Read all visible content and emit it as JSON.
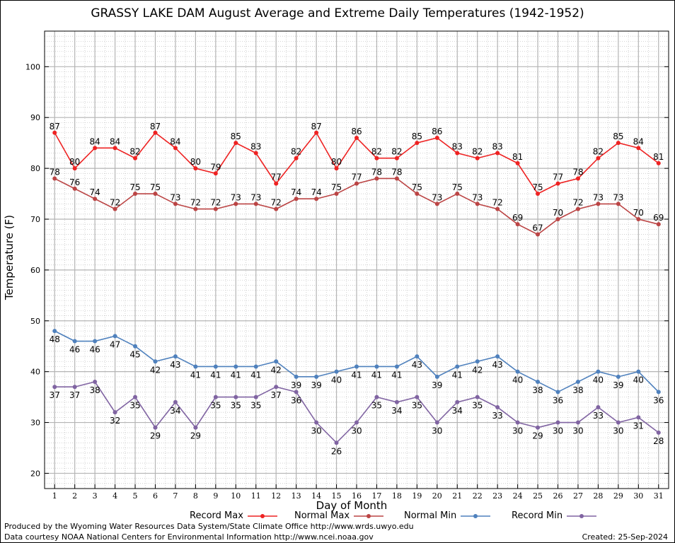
{
  "title": "GRASSY LAKE DAM August Average and Extreme Daily Temperatures (1942-1952)",
  "footer": {
    "produced_by": "Produced by the Wyoming Water Resources Data System/State Climate Office http://www.wrds.uwyo.edu",
    "courtesy": "Data courtesy NOAA National Centers for Environmental Information http://www.ncei.noaa.gov",
    "created": "Created:  25-Sep-2024"
  },
  "colors": {
    "record_max": "#ee2222",
    "normal_max": "#bb4444",
    "normal_min": "#4f81bd",
    "record_min": "#8064a2"
  },
  "chart_data": {
    "type": "line",
    "title": "GRASSY LAKE DAM August Average and Extreme Daily Temperatures (1942-1952)",
    "xlabel": "Day of Month",
    "ylabel": "Temperature (F)",
    "x": [
      1,
      2,
      3,
      4,
      5,
      6,
      7,
      8,
      9,
      10,
      11,
      12,
      13,
      14,
      15,
      16,
      17,
      18,
      19,
      20,
      21,
      22,
      23,
      24,
      25,
      26,
      27,
      28,
      29,
      30,
      31
    ],
    "xlim": [
      0.5,
      31.5
    ],
    "ylim": [
      17,
      107
    ],
    "yticks": [
      20,
      30,
      40,
      50,
      60,
      70,
      80,
      90,
      100
    ],
    "grid": true,
    "legend_position": "bottom",
    "series": [
      {
        "name": "Record Max",
        "color": "#ee2222",
        "values": [
          87,
          80,
          84,
          84,
          82,
          87,
          84,
          80,
          79,
          85,
          83,
          77,
          82,
          87,
          80,
          86,
          82,
          82,
          85,
          86,
          83,
          82,
          83,
          81,
          75,
          77,
          78,
          82,
          85,
          84,
          81
        ]
      },
      {
        "name": "Normal Max",
        "color": "#bb4444",
        "values": [
          78,
          76,
          74,
          72,
          75,
          75,
          73,
          72,
          72,
          73,
          73,
          72,
          74,
          74,
          75,
          77,
          78,
          78,
          75,
          73,
          75,
          73,
          72,
          69,
          67,
          70,
          72,
          73,
          73,
          70,
          69
        ]
      },
      {
        "name": "Normal Min",
        "color": "#4f81bd",
        "values": [
          48,
          46,
          46,
          47,
          45,
          42,
          43,
          41,
          41,
          41,
          41,
          42,
          39,
          39,
          40,
          41,
          41,
          41,
          43,
          39,
          41,
          42,
          43,
          40,
          38,
          36,
          38,
          40,
          39,
          40,
          36
        ]
      },
      {
        "name": "Record Min",
        "color": "#8064a2",
        "values": [
          37,
          37,
          38,
          32,
          35,
          29,
          34,
          29,
          35,
          35,
          35,
          37,
          36,
          30,
          26,
          30,
          35,
          34,
          35,
          30,
          34,
          35,
          33,
          30,
          29,
          30,
          30,
          33,
          30,
          31,
          28
        ]
      }
    ]
  }
}
